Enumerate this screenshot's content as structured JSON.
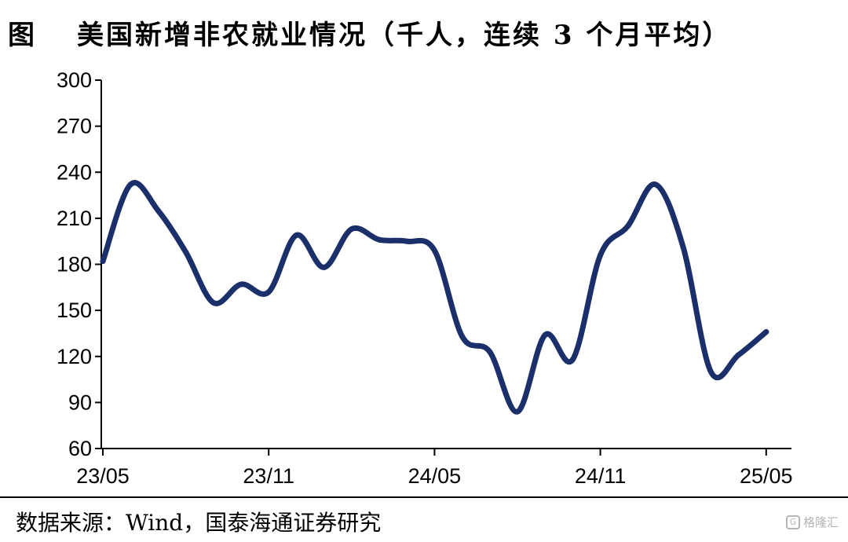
{
  "figure_label": "图",
  "source_text": "数据来源：Wind，国泰海通证券研究",
  "watermark": {
    "text": "格隆汇",
    "icon": "gelonghui-logo-icon"
  },
  "colors": {
    "series_line": "#1b2f6b",
    "axis": "#000000"
  },
  "chart_data": {
    "type": "line",
    "title": "美国新增非农就业情况（千人，连续 3 个月平均）",
    "xlabel": "",
    "ylabel": "",
    "ylim": [
      60,
      300
    ],
    "y_ticks": [
      60,
      90,
      120,
      150,
      180,
      210,
      240,
      270,
      300
    ],
    "x_tick_labels": [
      "23/05",
      "23/11",
      "24/05",
      "24/11",
      "25/05"
    ],
    "grid": false,
    "legend": "none",
    "series": [
      {
        "x": [
          "23/05",
          "23/06",
          "23/07",
          "23/08",
          "23/09",
          "23/10",
          "23/11",
          "23/12",
          "24/01",
          "24/02",
          "24/03",
          "24/04",
          "24/05",
          "24/06",
          "24/07",
          "24/08",
          "24/09",
          "24/10",
          "24/11",
          "24/12",
          "25/01",
          "25/02",
          "25/03",
          "25/04",
          "25/05"
        ],
        "values": [
          182,
          232,
          215,
          188,
          155,
          167,
          162,
          199,
          178,
          203,
          196,
          195,
          189,
          133,
          123,
          84,
          134,
          118,
          186,
          205,
          232,
          191,
          110,
          121,
          136
        ]
      }
    ]
  }
}
